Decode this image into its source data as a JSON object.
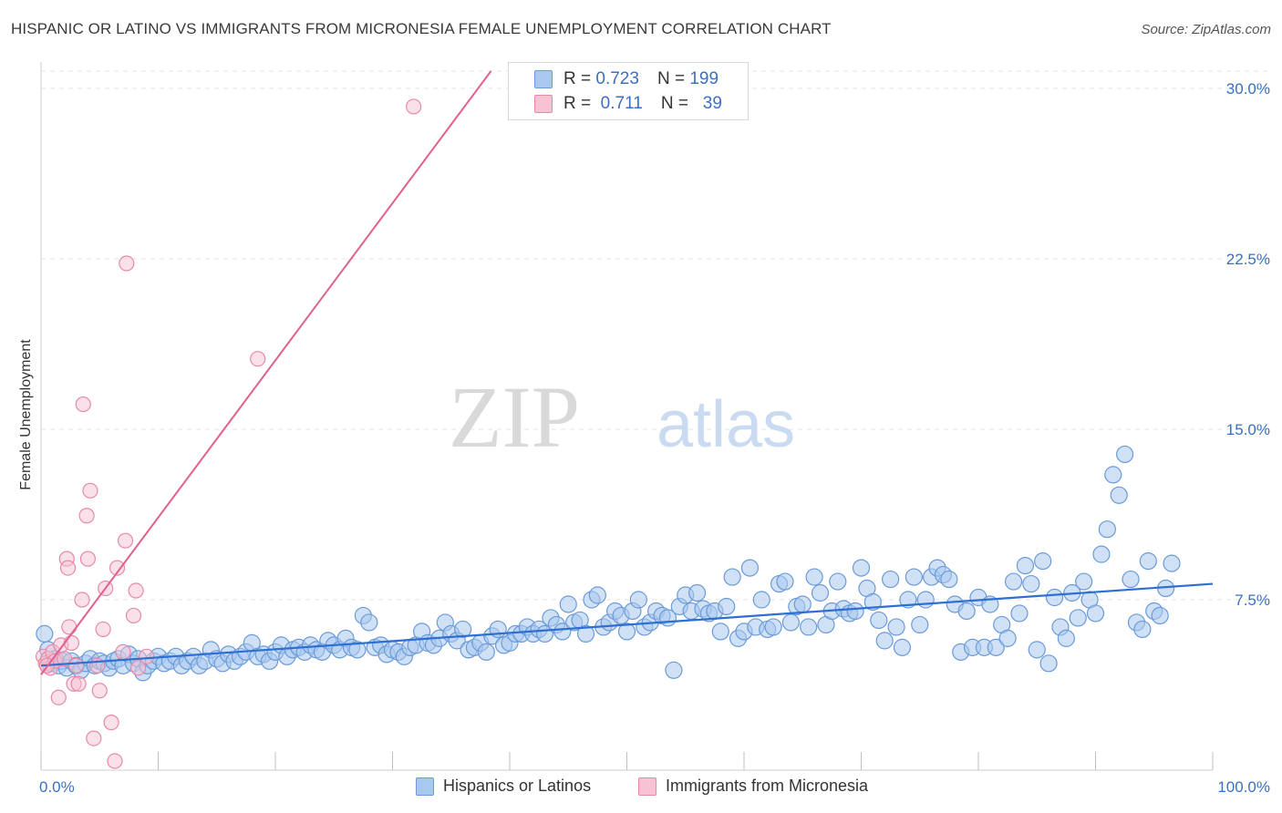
{
  "title": "HISPANIC OR LATINO VS IMMIGRANTS FROM MICRONESIA FEMALE UNEMPLOYMENT CORRELATION CHART",
  "source": "Source: ZipAtlas.com",
  "watermark": {
    "zip": "ZIP",
    "atlas": "atlas"
  },
  "legend": {
    "rows": [
      {
        "r_label": "R =",
        "r_value": "0.723",
        "n_label": "N =",
        "n_value": "199"
      },
      {
        "r_label": "R =",
        "r_value": "0.711",
        "n_label": "N =",
        "n_value": "39"
      }
    ]
  },
  "colors": {
    "blue_fill": "#a9c8ef",
    "blue_stroke": "#6a9bd8",
    "blue_line": "#2e6fd1",
    "pink_fill": "#f6c2d4",
    "pink_stroke": "#e68aaa",
    "pink_line": "#e0608f",
    "axis_text": "#3a6fc4",
    "grid": "#e3e3e3"
  },
  "chart_data": {
    "type": "scatter",
    "ylabel": "Female Unemployment",
    "xlim": [
      0,
      100
    ],
    "ylim": [
      0,
      30
    ],
    "x_tick_labels": [
      "0.0%",
      "100.0%"
    ],
    "y_ticks": [
      7.5,
      15.0,
      22.5,
      30.0
    ],
    "y_tick_labels": [
      "7.5%",
      "15.0%",
      "22.5%",
      "30.0%"
    ],
    "grid": "horizontal dashed",
    "legend_position": "top-center",
    "series": [
      {
        "name": "Hispanics or Latinos",
        "r": 0.723,
        "n": 199,
        "trend": {
          "x": [
            0,
            100
          ],
          "y": [
            4.6,
            8.2
          ]
        },
        "points": [
          [
            0.3,
            6.0
          ],
          [
            0.6,
            5.3
          ],
          [
            0.9,
            4.7
          ],
          [
            1.2,
            4.9
          ],
          [
            1.5,
            4.6
          ],
          [
            1.8,
            4.8
          ],
          [
            2.2,
            4.5
          ],
          [
            2.6,
            4.8
          ],
          [
            3.0,
            4.6
          ],
          [
            3.4,
            4.4
          ],
          [
            3.8,
            4.7
          ],
          [
            4.2,
            4.9
          ],
          [
            4.6,
            4.6
          ],
          [
            5.0,
            4.8
          ],
          [
            5.4,
            4.7
          ],
          [
            5.8,
            4.5
          ],
          [
            6.2,
            4.8
          ],
          [
            6.6,
            4.9
          ],
          [
            7.0,
            4.6
          ],
          [
            7.5,
            5.1
          ],
          [
            7.9,
            4.7
          ],
          [
            8.3,
            4.9
          ],
          [
            8.7,
            4.3
          ],
          [
            9.1,
            4.6
          ],
          [
            9.6,
            4.8
          ],
          [
            10.0,
            5.0
          ],
          [
            10.5,
            4.7
          ],
          [
            11.0,
            4.8
          ],
          [
            11.5,
            5.0
          ],
          [
            12.0,
            4.6
          ],
          [
            12.5,
            4.8
          ],
          [
            13.0,
            5.0
          ],
          [
            13.5,
            4.6
          ],
          [
            14.0,
            4.8
          ],
          [
            14.5,
            5.3
          ],
          [
            15.0,
            4.9
          ],
          [
            15.5,
            4.7
          ],
          [
            16.0,
            5.1
          ],
          [
            16.5,
            4.8
          ],
          [
            17.0,
            5.0
          ],
          [
            17.5,
            5.2
          ],
          [
            18.0,
            5.6
          ],
          [
            18.5,
            5.0
          ],
          [
            19.0,
            5.1
          ],
          [
            19.5,
            4.8
          ],
          [
            20.0,
            5.2
          ],
          [
            20.5,
            5.5
          ],
          [
            21.0,
            5.0
          ],
          [
            21.5,
            5.3
          ],
          [
            22.0,
            5.4
          ],
          [
            22.5,
            5.2
          ],
          [
            23.0,
            5.5
          ],
          [
            23.5,
            5.3
          ],
          [
            24.0,
            5.2
          ],
          [
            24.5,
            5.7
          ],
          [
            25.0,
            5.5
          ],
          [
            25.5,
            5.3
          ],
          [
            26.0,
            5.8
          ],
          [
            26.5,
            5.4
          ],
          [
            27.0,
            5.3
          ],
          [
            27.5,
            6.8
          ],
          [
            28.0,
            6.5
          ],
          [
            28.5,
            5.4
          ],
          [
            29.0,
            5.5
          ],
          [
            29.5,
            5.1
          ],
          [
            30.0,
            5.3
          ],
          [
            30.5,
            5.2
          ],
          [
            31.0,
            5.0
          ],
          [
            31.5,
            5.4
          ],
          [
            32.0,
            5.5
          ],
          [
            32.5,
            6.1
          ],
          [
            33.0,
            5.6
          ],
          [
            33.5,
            5.5
          ],
          [
            34.0,
            5.8
          ],
          [
            34.5,
            6.5
          ],
          [
            35.0,
            6.0
          ],
          [
            35.5,
            5.7
          ],
          [
            36.0,
            6.2
          ],
          [
            36.5,
            5.3
          ],
          [
            37.0,
            5.4
          ],
          [
            37.5,
            5.6
          ],
          [
            38.0,
            5.2
          ],
          [
            38.5,
            5.9
          ],
          [
            39.0,
            6.2
          ],
          [
            39.5,
            5.5
          ],
          [
            40.0,
            5.6
          ],
          [
            40.5,
            6.0
          ],
          [
            41.0,
            6.0
          ],
          [
            41.5,
            6.3
          ],
          [
            42.0,
            6.0
          ],
          [
            42.5,
            6.2
          ],
          [
            43.0,
            6.0
          ],
          [
            43.5,
            6.7
          ],
          [
            44.0,
            6.4
          ],
          [
            44.5,
            6.1
          ],
          [
            45.0,
            7.3
          ],
          [
            45.5,
            6.5
          ],
          [
            46.0,
            6.6
          ],
          [
            46.5,
            6.0
          ],
          [
            47.0,
            7.5
          ],
          [
            47.5,
            7.7
          ],
          [
            48.0,
            6.3
          ],
          [
            48.5,
            6.5
          ],
          [
            49.0,
            7.0
          ],
          [
            49.5,
            6.8
          ],
          [
            50.0,
            6.1
          ],
          [
            50.5,
            7.0
          ],
          [
            51.0,
            7.5
          ],
          [
            51.5,
            6.3
          ],
          [
            52.0,
            6.5
          ],
          [
            52.5,
            7.0
          ],
          [
            53.0,
            6.8
          ],
          [
            53.5,
            6.7
          ],
          [
            54.0,
            4.4
          ],
          [
            54.5,
            7.2
          ],
          [
            55.0,
            7.7
          ],
          [
            55.5,
            7.0
          ],
          [
            56.0,
            7.8
          ],
          [
            56.5,
            7.1
          ],
          [
            57.0,
            6.9
          ],
          [
            57.5,
            7.0
          ],
          [
            58.0,
            6.1
          ],
          [
            58.5,
            7.2
          ],
          [
            59.0,
            8.5
          ],
          [
            59.5,
            5.8
          ],
          [
            60.0,
            6.1
          ],
          [
            60.5,
            8.9
          ],
          [
            61.0,
            6.3
          ],
          [
            61.5,
            7.5
          ],
          [
            62.0,
            6.2
          ],
          [
            62.5,
            6.3
          ],
          [
            63.0,
            8.2
          ],
          [
            63.5,
            8.3
          ],
          [
            64.0,
            6.5
          ],
          [
            64.5,
            7.2
          ],
          [
            65.0,
            7.3
          ],
          [
            65.5,
            6.3
          ],
          [
            66.0,
            8.5
          ],
          [
            66.5,
            7.8
          ],
          [
            67.0,
            6.4
          ],
          [
            67.5,
            7.0
          ],
          [
            68.0,
            8.3
          ],
          [
            68.5,
            7.1
          ],
          [
            69.0,
            6.9
          ],
          [
            69.5,
            7.0
          ],
          [
            70.0,
            8.9
          ],
          [
            70.5,
            8.0
          ],
          [
            71.0,
            7.4
          ],
          [
            71.5,
            6.6
          ],
          [
            72.0,
            5.7
          ],
          [
            72.5,
            8.4
          ],
          [
            73.0,
            6.3
          ],
          [
            73.5,
            5.4
          ],
          [
            74.0,
            7.5
          ],
          [
            74.5,
            8.5
          ],
          [
            75.0,
            6.4
          ],
          [
            75.5,
            7.5
          ],
          [
            76.0,
            8.5
          ],
          [
            76.5,
            8.9
          ],
          [
            77.0,
            8.6
          ],
          [
            77.5,
            8.4
          ],
          [
            78.0,
            7.3
          ],
          [
            78.5,
            5.2
          ],
          [
            79.0,
            7.0
          ],
          [
            79.5,
            5.4
          ],
          [
            80.0,
            7.6
          ],
          [
            80.5,
            5.4
          ],
          [
            81.0,
            7.3
          ],
          [
            81.5,
            5.4
          ],
          [
            82.0,
            6.4
          ],
          [
            82.5,
            5.8
          ],
          [
            83.0,
            8.3
          ],
          [
            83.5,
            6.9
          ],
          [
            84.0,
            9.0
          ],
          [
            84.5,
            8.2
          ],
          [
            85.0,
            5.3
          ],
          [
            85.5,
            9.2
          ],
          [
            86.0,
            4.7
          ],
          [
            86.5,
            7.6
          ],
          [
            87.0,
            6.3
          ],
          [
            87.5,
            5.8
          ],
          [
            88.0,
            7.8
          ],
          [
            88.5,
            6.7
          ],
          [
            89.0,
            8.3
          ],
          [
            89.5,
            7.5
          ],
          [
            90.0,
            6.9
          ],
          [
            90.5,
            9.5
          ],
          [
            91.0,
            10.6
          ],
          [
            91.5,
            13.0
          ],
          [
            92.0,
            12.1
          ],
          [
            92.5,
            13.9
          ],
          [
            93.0,
            8.4
          ],
          [
            93.5,
            6.5
          ],
          [
            94.0,
            6.2
          ],
          [
            94.5,
            9.2
          ],
          [
            95.0,
            7.0
          ],
          [
            95.5,
            6.8
          ],
          [
            96.0,
            8.0
          ],
          [
            96.5,
            9.1
          ]
        ]
      },
      {
        "name": "Immigrants from Micronesia",
        "r": 0.711,
        "n": 39,
        "trend": {
          "x": [
            0,
            37.3
          ],
          "y": [
            4.2,
            30.0
          ]
        },
        "points": [
          [
            0.2,
            5.0
          ],
          [
            0.4,
            4.7
          ],
          [
            0.6,
            4.9
          ],
          [
            0.8,
            4.5
          ],
          [
            1.0,
            5.2
          ],
          [
            1.2,
            4.8
          ],
          [
            1.5,
            3.2
          ],
          [
            1.7,
            5.5
          ],
          [
            2.0,
            4.9
          ],
          [
            2.2,
            9.3
          ],
          [
            2.3,
            8.9
          ],
          [
            2.4,
            6.3
          ],
          [
            2.6,
            5.6
          ],
          [
            2.8,
            3.8
          ],
          [
            3.0,
            4.6
          ],
          [
            3.2,
            3.8
          ],
          [
            3.5,
            7.5
          ],
          [
            3.6,
            16.1
          ],
          [
            3.9,
            11.2
          ],
          [
            4.0,
            9.3
          ],
          [
            4.2,
            12.3
          ],
          [
            4.5,
            1.4
          ],
          [
            4.8,
            4.6
          ],
          [
            5.0,
            3.5
          ],
          [
            5.3,
            6.2
          ],
          [
            5.5,
            8.0
          ],
          [
            6.0,
            2.1
          ],
          [
            6.3,
            0.4
          ],
          [
            6.5,
            8.9
          ],
          [
            7.0,
            5.2
          ],
          [
            7.2,
            10.1
          ],
          [
            7.3,
            22.3
          ],
          [
            7.9,
            6.8
          ],
          [
            8.1,
            7.9
          ],
          [
            8.3,
            4.5
          ],
          [
            9.0,
            5.0
          ],
          [
            18.5,
            18.1
          ],
          [
            31.8,
            29.2
          ],
          [
            0.5,
            4.6
          ]
        ]
      }
    ]
  },
  "bottom_legend": [
    "Hispanics or Latinos",
    "Immigrants from Micronesia"
  ]
}
